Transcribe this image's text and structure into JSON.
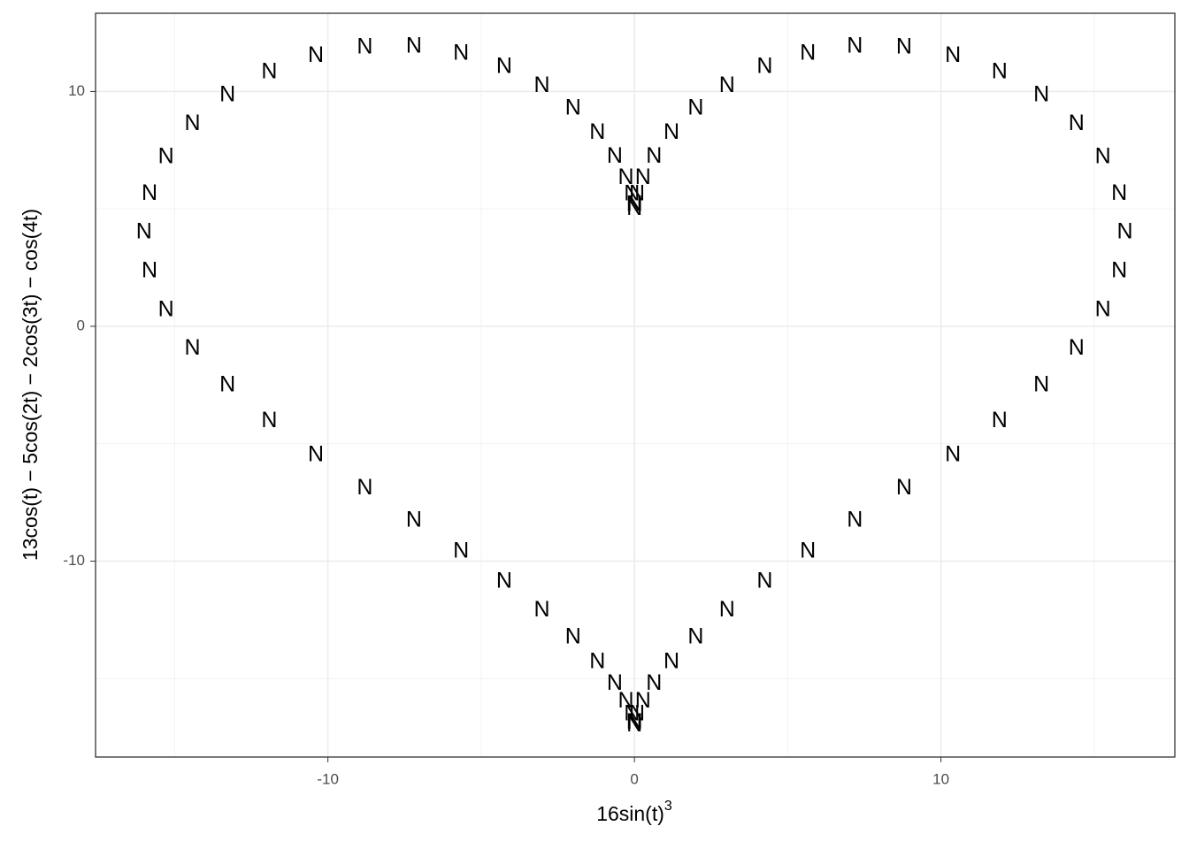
{
  "chart_data": {
    "type": "text-scatter",
    "point_label": "N",
    "x_label": "16sin(t)",
    "x_label_superscript": "3",
    "y_label": "13cos(t) − 5cos(2t) − 2cos(3t) − cos(4t)",
    "xlim": [
      -17.58,
      17.63
    ],
    "ylim": [
      -18.34,
      13.33
    ],
    "xticks": [
      -10,
      0,
      10
    ],
    "yticks": [
      -10,
      0,
      10
    ],
    "xminor": [
      -15,
      -5,
      5,
      15
    ],
    "yminor": [
      -15,
      -5,
      5
    ],
    "grid": true,
    "color": "#000000",
    "x": [
      0,
      0.0106,
      0.0837,
      0.277,
      0.64,
      1.208,
      2,
      3.019,
      4.249,
      5.657,
      7.192,
      8.795,
      10.392,
      11.911,
      13.277,
      14.419,
      15.282,
      15.818,
      16,
      15.818,
      15.282,
      14.419,
      13.277,
      11.911,
      10.392,
      8.795,
      7.192,
      5.657,
      4.249,
      3.019,
      2,
      1.208,
      0.64,
      0.277,
      0.0837,
      0.0106,
      0,
      -0.0106,
      -0.0837,
      -0.277,
      -0.64,
      -1.208,
      -2,
      -3.019,
      -4.249,
      -5.657,
      -7.192,
      -8.795,
      -10.392,
      -11.911,
      -13.277,
      -14.419,
      -15.282,
      -15.818,
      -16,
      -15.818,
      -15.282,
      -14.419,
      -13.277,
      -11.911,
      -10.392,
      -8.795,
      -7.192,
      -5.657,
      -4.249,
      -3.019,
      -2,
      -1.208,
      -0.64,
      -0.277,
      -0.0837,
      -0.0106
    ],
    "y": [
      5,
      5.154,
      5.606,
      6.313,
      7.212,
      8.224,
      9.258,
      10.223,
      11.03,
      11.606,
      11.896,
      11.865,
      11.5,
      10.814,
      9.834,
      8.609,
      7.189,
      5.635,
      4,
      2.333,
      0.675,
      -0.949,
      -2.522,
      -4.038,
      -5.5,
      -6.913,
      -8.28,
      -9.606,
      -10.886,
      -12.111,
      -13.258,
      -14.304,
      -15.22,
      -15.973,
      -16.534,
      -16.882,
      -17,
      -16.882,
      -16.534,
      -15.973,
      -15.22,
      -14.304,
      -13.258,
      -12.111,
      -10.886,
      -9.606,
      -8.28,
      -6.913,
      -5.5,
      -4.038,
      -2.522,
      -0.949,
      0.675,
      2.333,
      4,
      5.635,
      7.189,
      8.609,
      9.834,
      10.814,
      11.5,
      11.865,
      11.896,
      11.606,
      11.03,
      10.223,
      9.258,
      8.224,
      7.212,
      6.313,
      5.606,
      5.154
    ]
  }
}
